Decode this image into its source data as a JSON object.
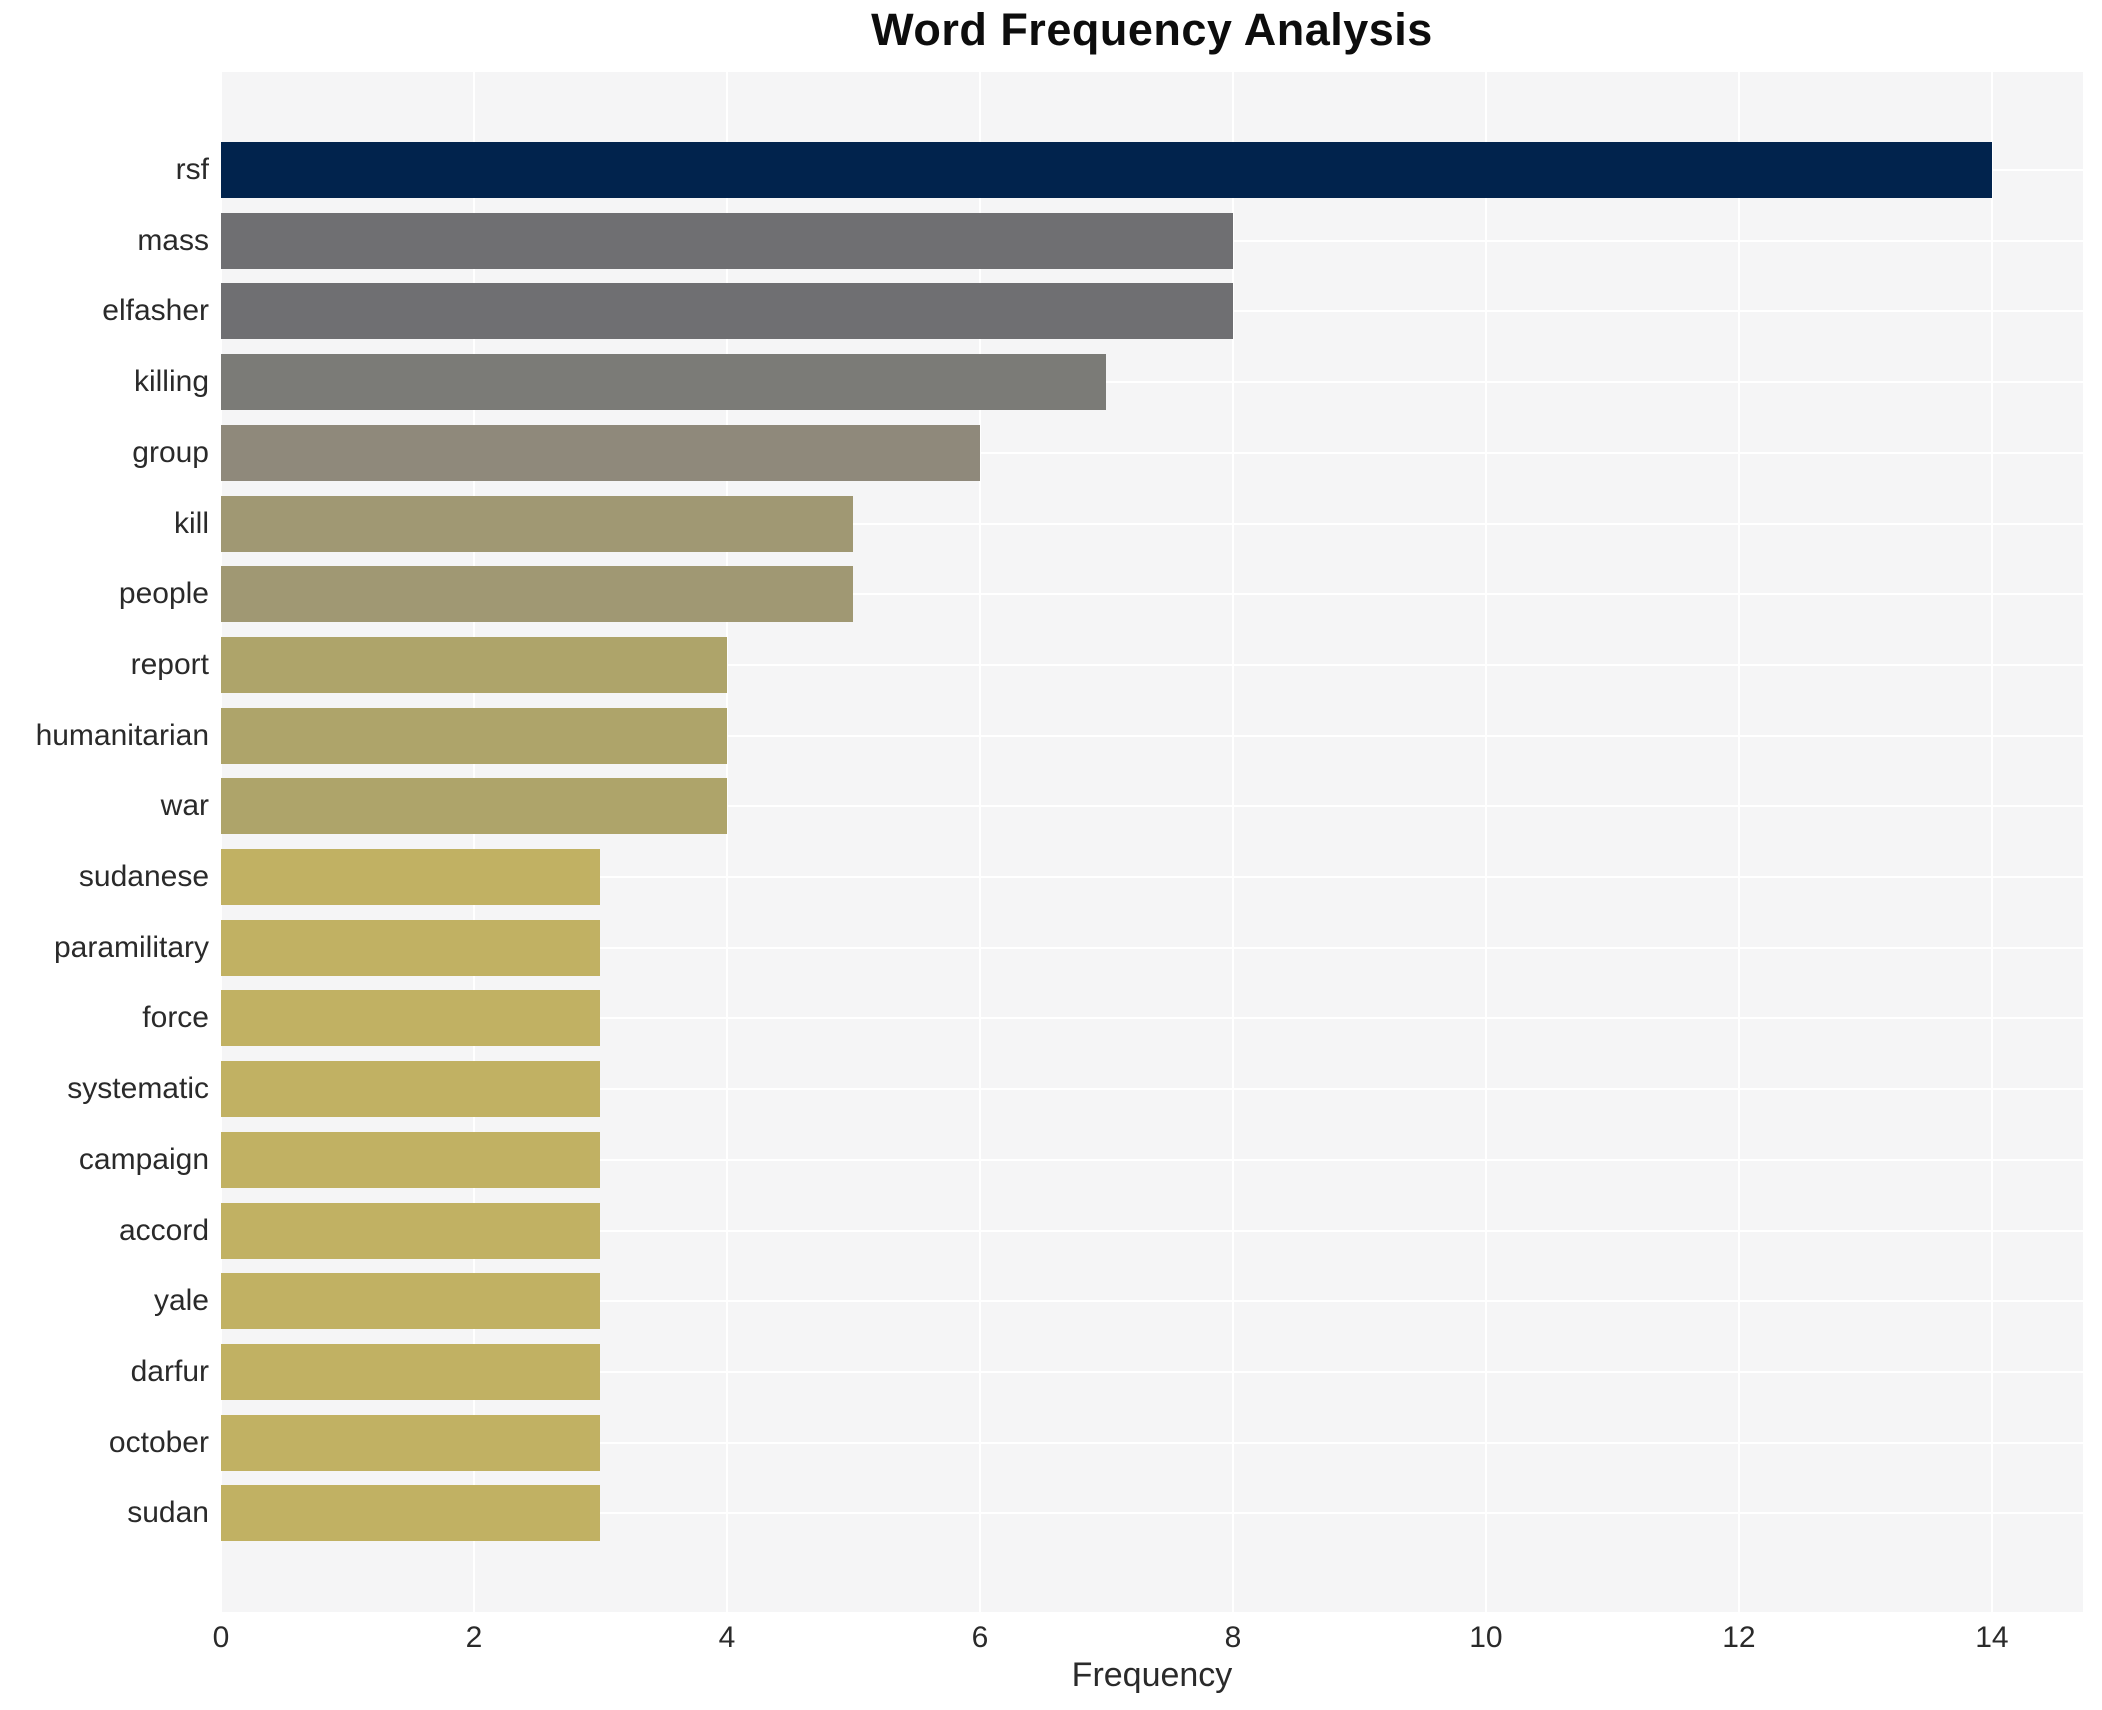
{
  "header": {
    "title": "Word Frequency Analysis"
  },
  "chart_data": {
    "type": "bar",
    "orientation": "horizontal",
    "title": "Word Frequency Analysis",
    "xlabel": "Frequency",
    "ylabel": "",
    "categories": [
      "rsf",
      "mass",
      "elfasher",
      "killing",
      "group",
      "kill",
      "people",
      "report",
      "humanitarian",
      "war",
      "sudanese",
      "paramilitary",
      "force",
      "systematic",
      "campaign",
      "accord",
      "yale",
      "darfur",
      "october",
      "sudan"
    ],
    "values": [
      14,
      8,
      8,
      7,
      6,
      5,
      5,
      4,
      4,
      4,
      3,
      3,
      3,
      3,
      3,
      3,
      3,
      3,
      3,
      3
    ],
    "bar_colors": [
      "#01234d",
      "#6f6f72",
      "#6f6f72",
      "#7b7b77",
      "#8f897b",
      "#a09873",
      "#a09873",
      "#aea46a",
      "#aea46a",
      "#aea46a",
      "#c1b163",
      "#c1b163",
      "#c1b163",
      "#c1b163",
      "#c1b163",
      "#c1b163",
      "#c1b163",
      "#c1b163",
      "#c1b163",
      "#c1b163"
    ],
    "xlim": [
      0,
      14.72
    ],
    "xticks": [
      0,
      2,
      4,
      6,
      8,
      10,
      12,
      14
    ],
    "grid": "major vertical gridlines at x ticks and horizontal gridlines at category centers, white on light gray panel",
    "legend": "none",
    "colors": {
      "plot_background": "#f5f5f6",
      "gridline": "#ffffff",
      "page_background": "#ffffff",
      "title_text": "#0d0d0d",
      "axis_text": "#2a2a2a",
      "max_bar": "#01234d",
      "min_bar": "#c1b163"
    }
  }
}
